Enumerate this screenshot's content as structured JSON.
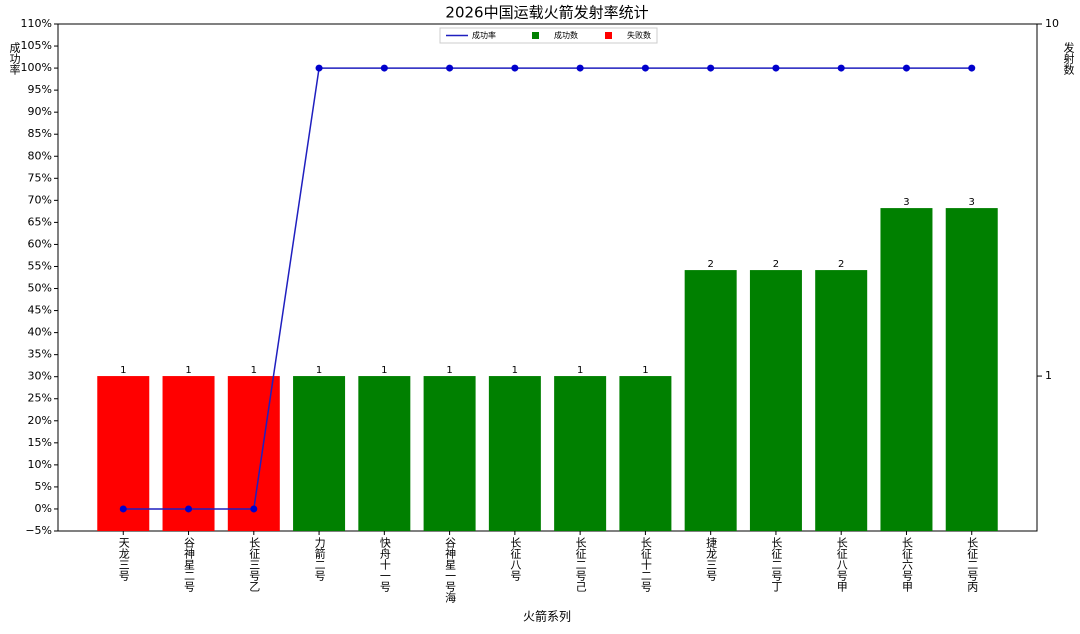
{
  "chart_data": {
    "type": "bar-line",
    "title": "2026中国运载火箭发射率统计",
    "x_label": "火箭系列",
    "y_label": "成功率",
    "y2_label": "发射数",
    "categories": [
      "天龙三号",
      "谷神星二号",
      "长征三号乙",
      "力箭二号",
      "快舟十一号",
      "谷神星一号海",
      "长征八号",
      "长征二号己",
      "长征十二号",
      "捷龙三号",
      "长征二号丁",
      "长征八号甲",
      "长征六号甲",
      "长征二号丙"
    ],
    "series": [
      {
        "name": "成功率",
        "kind": "line",
        "color": "#1f1fbf",
        "values": [
          0,
          0,
          0,
          100,
          100,
          100,
          100,
          100,
          100,
          100,
          100,
          100,
          100,
          100
        ]
      },
      {
        "name": "成功数",
        "kind": "bar",
        "axis": "y2",
        "color": "#008000",
        "values": [
          null,
          null,
          null,
          1,
          1,
          1,
          1,
          1,
          1,
          2,
          2,
          2,
          3,
          3
        ]
      },
      {
        "name": "失败数",
        "kind": "bar",
        "axis": "y2",
        "color": "#ff0000",
        "values": [
          1,
          1,
          1,
          null,
          null,
          null,
          null,
          null,
          null,
          null,
          null,
          null,
          null,
          null
        ]
      }
    ],
    "ylim": [
      -5,
      110
    ],
    "yticks": [
      {
        "value": -5,
        "label": "−5%"
      },
      {
        "value": 0,
        "label": "0%"
      },
      {
        "value": 5,
        "label": "5%"
      },
      {
        "value": 10,
        "label": "10%"
      },
      {
        "value": 15,
        "label": "15%"
      },
      {
        "value": 20,
        "label": "20%"
      },
      {
        "value": 25,
        "label": "25%"
      },
      {
        "value": 30,
        "label": "30%"
      },
      {
        "value": 35,
        "label": "35%"
      },
      {
        "value": 40,
        "label": "40%"
      },
      {
        "value": 45,
        "label": "45%"
      },
      {
        "value": 50,
        "label": "50%"
      },
      {
        "value": 55,
        "label": "55%"
      },
      {
        "value": 60,
        "label": "60%"
      },
      {
        "value": 65,
        "label": "65%"
      },
      {
        "value": 70,
        "label": "70%"
      },
      {
        "value": 75,
        "label": "75%"
      },
      {
        "value": 80,
        "label": "80%"
      },
      {
        "value": 85,
        "label": "85%"
      },
      {
        "value": 90,
        "label": "90%"
      },
      {
        "value": 95,
        "label": "95%"
      },
      {
        "value": 100,
        "label": "100%"
      },
      {
        "value": 105,
        "label": "105%"
      },
      {
        "value": 110,
        "label": "110%"
      }
    ],
    "y2lim": [
      0.363,
      10
    ],
    "y2ticks": [
      1,
      10
    ],
    "y2_log": true,
    "legend": "top"
  }
}
